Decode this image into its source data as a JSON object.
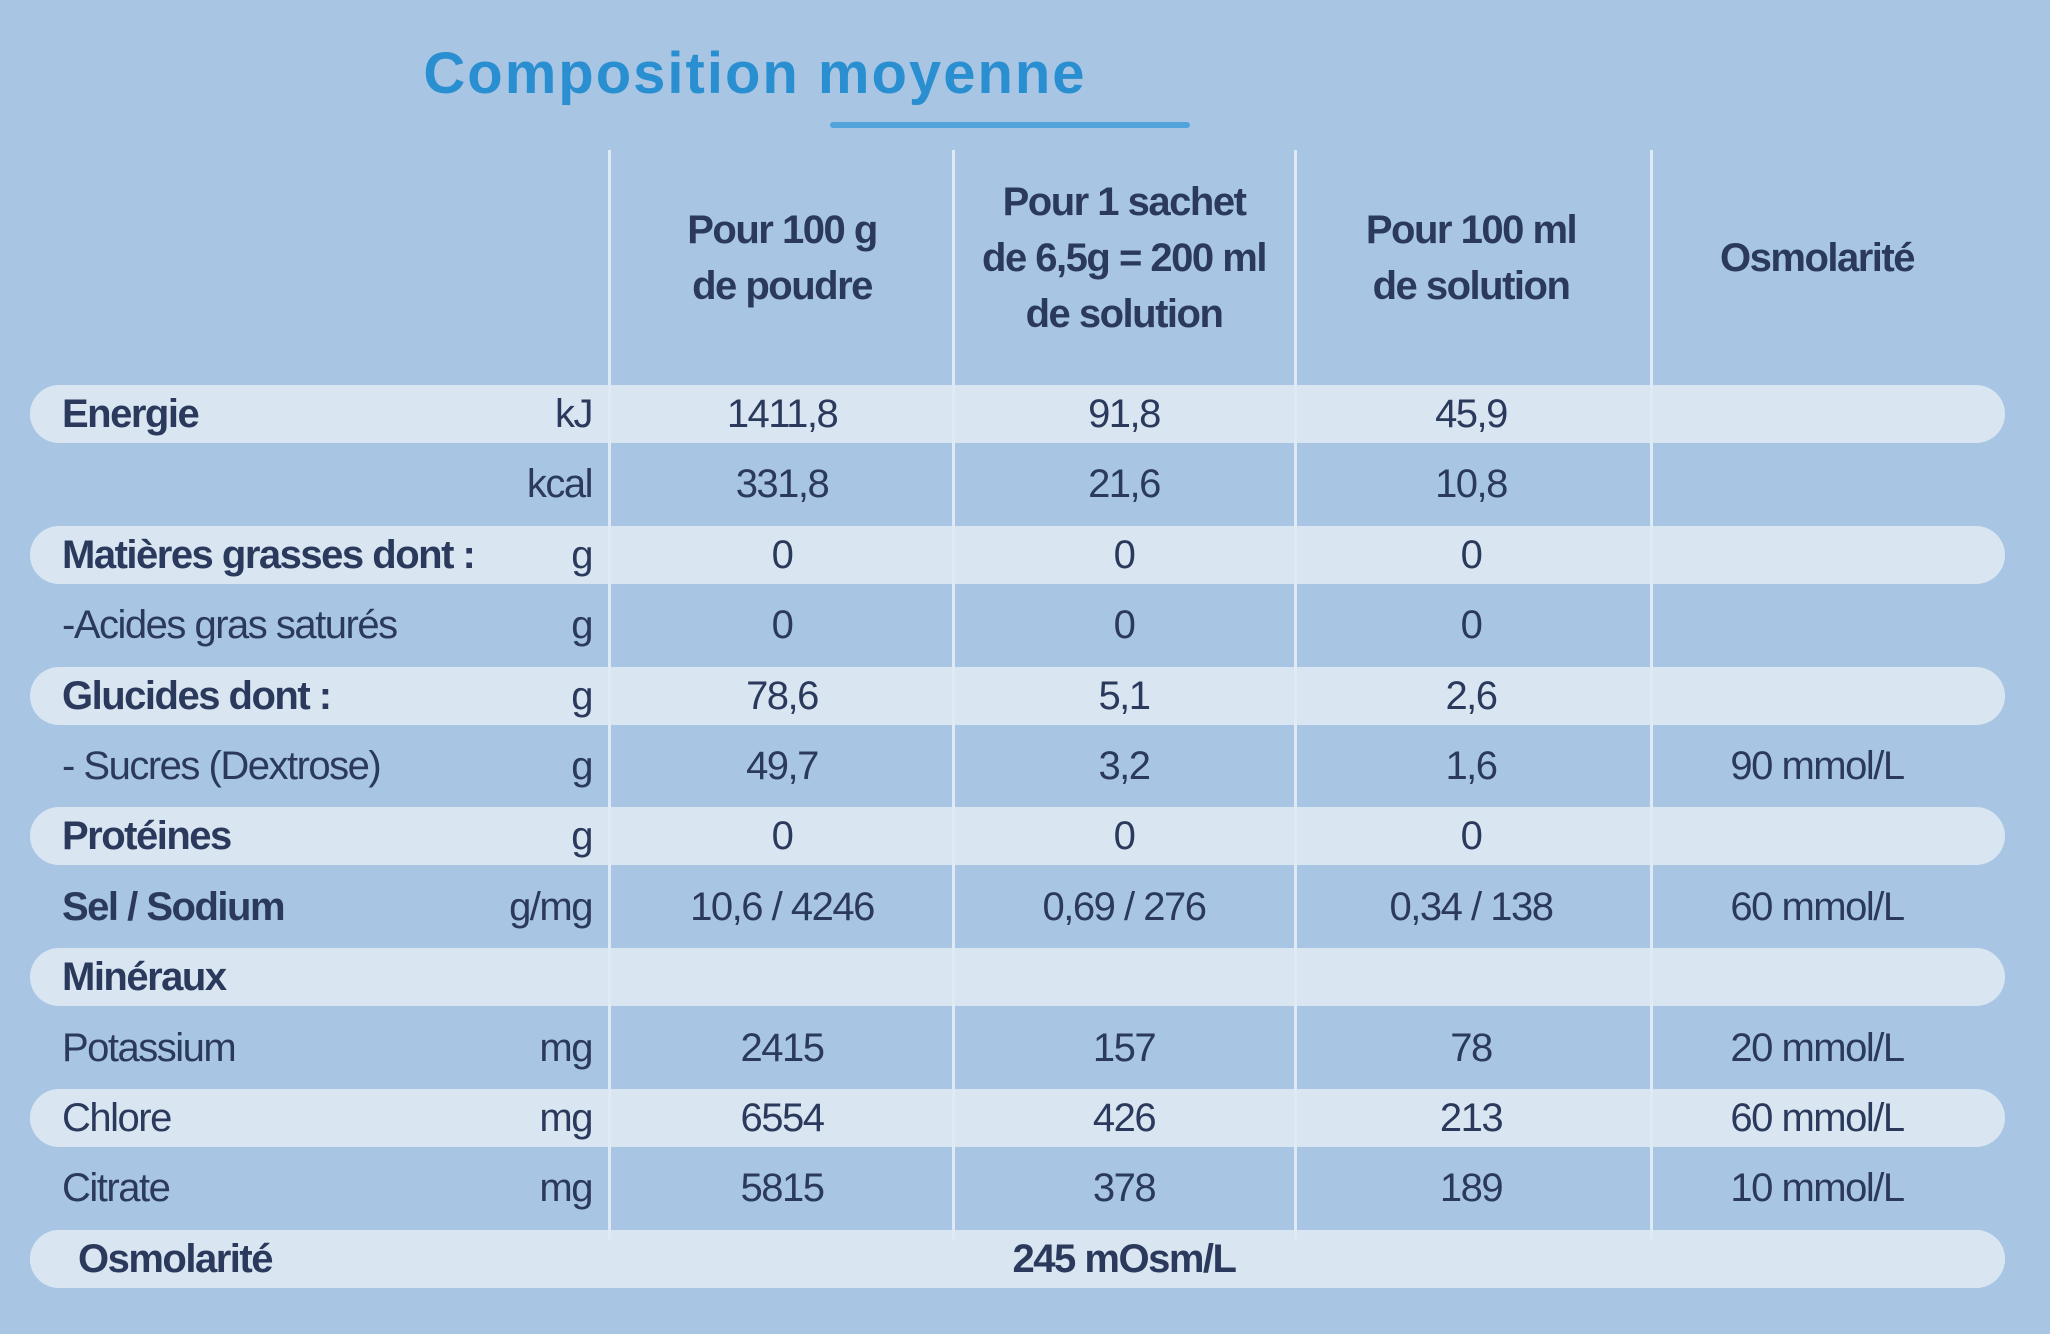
{
  "header": {
    "title": "Composition moyenne"
  },
  "table": {
    "columns": [
      [
        "Pour 100 g",
        "de poudre"
      ],
      [
        "Pour 1 sachet",
        "de 6,5g = 200 ml",
        "de solution"
      ],
      [
        "Pour 100 ml",
        "de solution"
      ],
      [
        "Osmolarité"
      ]
    ],
    "rows": [
      {
        "label": "Energie",
        "unit": "kJ",
        "values": [
          "1411,8",
          "91,8",
          "45,9"
        ],
        "bold": true
      },
      {
        "unit": "kcal",
        "values": [
          "331,8",
          "21,6",
          "10,8"
        ]
      },
      {
        "label": "Matières grasses dont :",
        "unit": "g",
        "values": [
          "0",
          "0",
          "0"
        ],
        "bold": true
      },
      {
        "label": "-Acides gras saturés",
        "unit": "g",
        "values": [
          "0",
          "0",
          "0"
        ]
      },
      {
        "label": "Glucides dont :",
        "unit": "g",
        "values": [
          "78,6",
          "5,1",
          "2,6"
        ],
        "bold": true
      },
      {
        "label": "- Sucres (Dextrose)",
        "unit": "g",
        "values": [
          "49,7",
          "3,2",
          "1,6"
        ],
        "osmolarity": "90 mmol/L"
      },
      {
        "label": "Protéines",
        "unit": "g",
        "values": [
          "0",
          "0",
          "0"
        ],
        "bold": true
      },
      {
        "label": "Sel / Sodium",
        "unit": "g/mg",
        "values": [
          "10,6 / 4246",
          "0,69 / 276",
          "0,34 / 138"
        ],
        "osmolarity": "60 mmol/L",
        "bold": true
      },
      {
        "label": "Minéraux",
        "bold": true
      },
      {
        "label": "Potassium",
        "unit": "mg",
        "values": [
          "2415",
          "157",
          "78"
        ],
        "osmolarity": "20 mmol/L"
      },
      {
        "label": "Chlore",
        "unit": "mg",
        "values": [
          "6554",
          "426",
          "213"
        ],
        "osmolarity": "60 mmol/L"
      },
      {
        "label": "Citrate",
        "unit": "mg",
        "values": [
          "5815",
          "378",
          "189"
        ],
        "osmolarity": "10 mmol/L"
      }
    ],
    "total": {
      "label": "Osmolarité",
      "value": "245 mOsm/L"
    }
  }
}
